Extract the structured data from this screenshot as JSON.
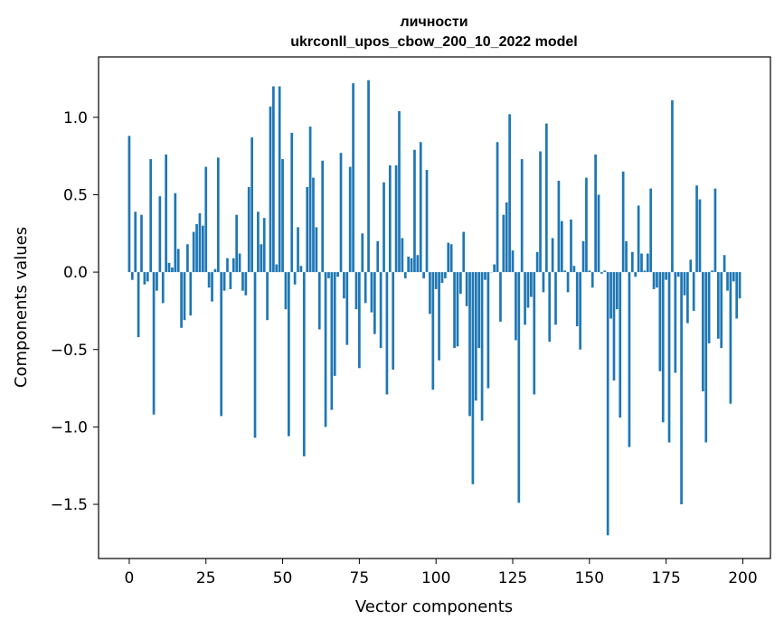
{
  "chart_data": {
    "type": "bar",
    "title": "личности",
    "subtitle": "ukrconll_upos_cbow_200_10_2022 model",
    "xlabel": "Vector components",
    "ylabel": "Components values",
    "xlim": [
      -10,
      209
    ],
    "ylim": [
      -1.85,
      1.39
    ],
    "xticks": [
      0,
      25,
      50,
      75,
      100,
      125,
      150,
      175,
      200
    ],
    "yticks": [
      -1.5,
      -1.0,
      -0.5,
      0.0,
      0.5,
      1.0
    ],
    "ytick_labels": [
      "−1.5",
      "−1.0",
      "−0.5",
      "0.0",
      "0.5",
      "1.0"
    ],
    "bar_color": "#1f77b4",
    "values": [
      0.88,
      -0.05,
      0.39,
      -0.42,
      0.37,
      -0.08,
      -0.06,
      0.73,
      -0.92,
      -0.12,
      0.49,
      -0.2,
      0.76,
      0.06,
      0.03,
      0.51,
      0.15,
      -0.36,
      -0.31,
      0.18,
      -0.28,
      0.26,
      0.31,
      0.38,
      0.3,
      0.68,
      -0.1,
      -0.19,
      0.02,
      0.74,
      -0.93,
      -0.12,
      0.09,
      -0.11,
      0.09,
      0.37,
      0.12,
      -0.12,
      -0.15,
      0.55,
      0.87,
      -1.07,
      0.39,
      0.18,
      0.35,
      -0.31,
      1.07,
      1.2,
      0.05,
      1.2,
      0.73,
      -0.24,
      -1.06,
      0.9,
      -0.08,
      0.29,
      0.04,
      -1.19,
      0.55,
      0.94,
      0.61,
      0.29,
      -0.37,
      0.72,
      -1.0,
      -0.04,
      -0.89,
      -0.67,
      -0.03,
      0.77,
      -0.17,
      -0.47,
      0.68,
      1.22,
      -0.24,
      -0.62,
      0.25,
      -0.2,
      1.24,
      -0.26,
      -0.4,
      0.2,
      -0.49,
      0.58,
      -0.79,
      0.69,
      -0.63,
      0.69,
      1.04,
      0.22,
      -0.04,
      0.1,
      0.09,
      0.79,
      0.11,
      0.84,
      -0.04,
      0.66,
      -0.27,
      -0.76,
      -0.11,
      -0.57,
      -0.07,
      -0.04,
      0.19,
      0.18,
      -0.49,
      -0.48,
      -0.14,
      0.26,
      -0.22,
      -0.93,
      -1.37,
      -0.83,
      -0.49,
      -0.96,
      -0.05,
      -0.75,
      0.0,
      0.05,
      0.84,
      -0.32,
      0.37,
      0.45,
      1.02,
      0.14,
      -0.44,
      -1.49,
      0.73,
      -0.34,
      -0.23,
      -0.16,
      -0.79,
      0.13,
      0.78,
      -0.13,
      0.96,
      -0.45,
      0.22,
      -0.34,
      0.59,
      0.33,
      0.01,
      -0.13,
      0.34,
      0.04,
      -0.35,
      -0.5,
      0.2,
      0.61,
      0.01,
      -0.1,
      0.76,
      0.5,
      -0.01,
      0.01,
      -1.7,
      -0.3,
      -0.7,
      -0.24,
      -0.94,
      0.65,
      0.2,
      -1.13,
      0.13,
      -0.03,
      0.43,
      0.12,
      0.01,
      0.12,
      0.54,
      -0.11,
      -0.1,
      -0.64,
      -0.97,
      -0.05,
      -1.1,
      1.11,
      -0.65,
      -0.03,
      -1.5,
      -0.15,
      -0.33,
      0.08,
      -0.25,
      0.56,
      0.47,
      -0.77,
      -1.1,
      -0.46,
      0.01,
      0.54,
      -0.43,
      -0.49,
      0.11,
      -0.12,
      -0.85,
      -0.06,
      -0.3,
      -0.17
    ]
  }
}
